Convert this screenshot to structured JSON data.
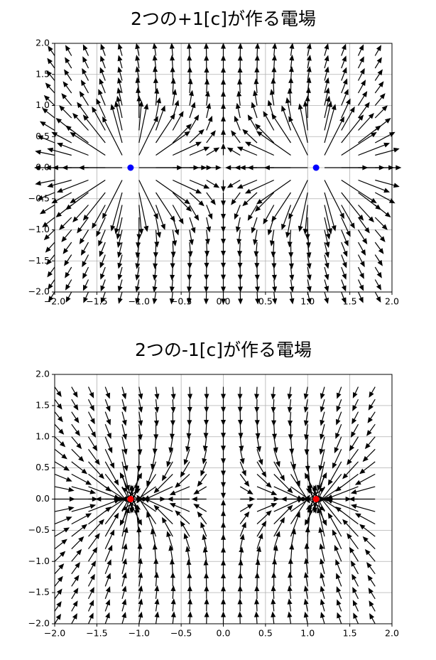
{
  "chart_data": [
    {
      "type": "quiver",
      "title": "2つの+1[c]が作る電場",
      "x": [
        -2,
        -1.8,
        -1.6,
        -1.4,
        -1.2,
        -1,
        -0.8,
        -0.6,
        -0.4,
        -0.2,
        0,
        0.2,
        0.4,
        0.6,
        0.8,
        1,
        1.2,
        1.4,
        1.6,
        1.8
      ],
      "y": [
        -2,
        -1.8,
        -1.6,
        -1.4,
        -1.2,
        -1,
        -0.8,
        -0.6,
        -0.4,
        -0.2,
        0,
        0.2,
        0.4,
        0.6,
        0.8,
        1,
        1.2,
        1.4,
        1.6,
        1.8
      ],
      "charges": [
        {
          "x": -1.1,
          "y": 0,
          "q": 1,
          "color": "#0000ff"
        },
        {
          "x": 1.1,
          "y": 0,
          "q": 1,
          "color": "#0000ff"
        }
      ],
      "color": "#000000",
      "xlim": [
        -2,
        2
      ],
      "ylim": [
        -2,
        2
      ],
      "xticks": [
        {
          "value": -2,
          "label": "−2.0"
        },
        {
          "value": -1.5,
          "label": "−1.5"
        },
        {
          "value": -1,
          "label": "−1.0"
        },
        {
          "value": -0.5,
          "label": "−0.5"
        },
        {
          "value": 0,
          "label": "0.0"
        },
        {
          "value": 0.5,
          "label": "0.5"
        },
        {
          "value": 1,
          "label": "1.0"
        },
        {
          "value": 1.5,
          "label": "1.5"
        },
        {
          "value": 2,
          "label": "2.0"
        }
      ],
      "yticks": [
        {
          "value": -2,
          "label": "−2.0"
        },
        {
          "value": -1.5,
          "label": "−1.5"
        },
        {
          "value": -1,
          "label": "−1.0"
        },
        {
          "value": -0.5,
          "label": "−0.5"
        },
        {
          "value": 0,
          "label": "0.0"
        },
        {
          "value": 0.5,
          "label": "0.5"
        },
        {
          "value": 1,
          "label": "1.0"
        },
        {
          "value": 1.5,
          "label": "1.5"
        },
        {
          "value": 2,
          "label": "2.0"
        }
      ],
      "grid": true
    },
    {
      "type": "quiver",
      "title": "2つの-1[c]が作る電場",
      "x": [
        -2,
        -1.8,
        -1.6,
        -1.4,
        -1.2,
        -1,
        -0.8,
        -0.6,
        -0.4,
        -0.2,
        0,
        0.2,
        0.4,
        0.6,
        0.8,
        1,
        1.2,
        1.4,
        1.6,
        1.8
      ],
      "y": [
        -2,
        -1.8,
        -1.6,
        -1.4,
        -1.2,
        -1,
        -0.8,
        -0.6,
        -0.4,
        -0.2,
        0,
        0.2,
        0.4,
        0.6,
        0.8,
        1,
        1.2,
        1.4,
        1.6,
        1.8
      ],
      "charges": [
        {
          "x": -1.1,
          "y": 0,
          "q": -1,
          "color": "#ff0000"
        },
        {
          "x": 1.1,
          "y": 0,
          "q": -1,
          "color": "#ff0000"
        }
      ],
      "color": "#000000",
      "xlim": [
        -2,
        2
      ],
      "ylim": [
        -2,
        2
      ],
      "xticks": [
        {
          "value": -2,
          "label": "−2.0"
        },
        {
          "value": -1.5,
          "label": "−1.5"
        },
        {
          "value": -1,
          "label": "−1.0"
        },
        {
          "value": -0.5,
          "label": "−0.5"
        },
        {
          "value": 0,
          "label": "0.0"
        },
        {
          "value": 0.5,
          "label": "0.5"
        },
        {
          "value": 1,
          "label": "1.0"
        },
        {
          "value": 1.5,
          "label": "1.5"
        },
        {
          "value": 2,
          "label": "2.0"
        }
      ],
      "yticks": [
        {
          "value": -2,
          "label": "−2.0"
        },
        {
          "value": -1.5,
          "label": "−1.5"
        },
        {
          "value": -1,
          "label": "−1.0"
        },
        {
          "value": -0.5,
          "label": "−0.5"
        },
        {
          "value": 0,
          "label": "0.0"
        },
        {
          "value": 0.5,
          "label": "0.5"
        },
        {
          "value": 1,
          "label": "1.0"
        },
        {
          "value": 1.5,
          "label": "1.5"
        },
        {
          "value": 2,
          "label": "2.0"
        }
      ],
      "grid": true
    }
  ]
}
